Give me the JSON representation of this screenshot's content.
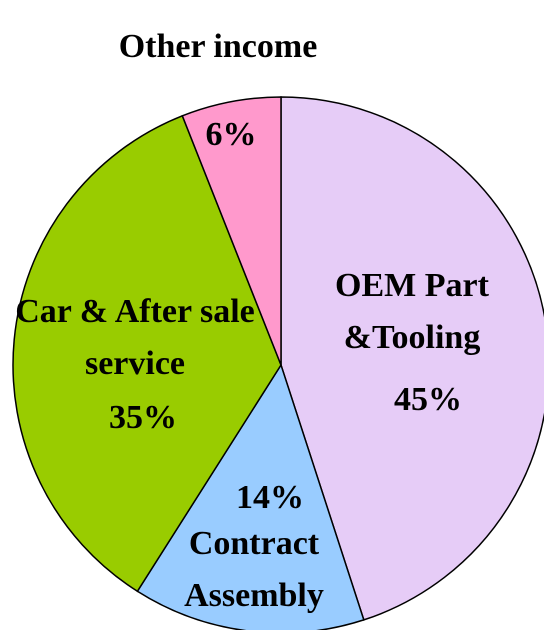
{
  "chart_data": {
    "type": "pie",
    "categories": [
      "OEM Part &Tooling",
      "Contract Assembly",
      "Car & After sale service",
      "Other income"
    ],
    "values": [
      45,
      14,
      35,
      6
    ],
    "value_labels": [
      "45%",
      "14%",
      "35%",
      "6%"
    ],
    "colors": [
      "#e6ccf7",
      "#99ccff",
      "#99cc00",
      "#ff99cc"
    ]
  }
}
